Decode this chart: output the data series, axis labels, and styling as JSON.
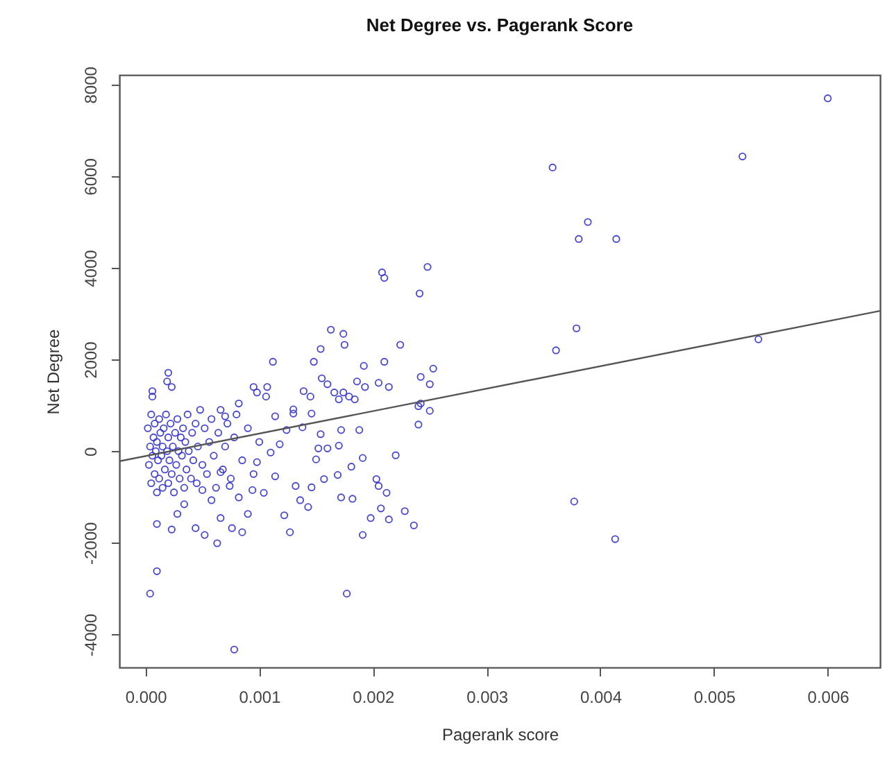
{
  "chart_data": {
    "type": "scatter",
    "title": "Net Degree vs. Pagerank Score",
    "xlabel": "Pagerank score",
    "ylabel": "Net Degree",
    "xlim": [
      -0.00023,
      0.00646
    ],
    "ylim": [
      -4720,
      8210
    ],
    "xticks": [
      {
        "value": 0,
        "label": "0.000"
      },
      {
        "value": 0.001,
        "label": "0.001"
      },
      {
        "value": 0.002,
        "label": "0.002"
      },
      {
        "value": 0.003,
        "label": "0.003"
      },
      {
        "value": 0.004,
        "label": "0.004"
      },
      {
        "value": 0.005,
        "label": "0.005"
      },
      {
        "value": 0.006,
        "label": "0.006"
      }
    ],
    "yticks": [
      -4000,
      -2000,
      0,
      2000,
      4000,
      6000,
      8000
    ],
    "grid": false,
    "series": [
      {
        "marker": "circle",
        "color": "#3333cc",
        "x": [
          0.006,
          0.00525,
          0.00358,
          0.00389,
          0.00381,
          0.00414,
          0.00379,
          0.00361,
          0.00539,
          0.00248,
          0.00208,
          0.0021,
          0.00241,
          0.00163,
          0.00174,
          0.00175,
          0.00154,
          0.00224,
          0.00148,
          0.00112,
          0.00192,
          0.0021,
          0.00253,
          0.00155,
          0.00186,
          0.00205,
          0.00242,
          0.00166,
          0.00174,
          0.00179,
          0.00139,
          0.00107,
          0.00095,
          0.0002,
          0.00019,
          6e-05,
          0.00242,
          0.0024,
          0.0001,
          0.00023,
          0.0001,
          4e-05,
          0.00078,
          0.00177,
          0.00191,
          0.00063,
          0.00052,
          0.00044,
          0.00066,
          0.00076,
          0.00085,
          0.0009,
          0.00127,
          0.00122,
          0.00136,
          0.00143,
          0.00198,
          0.00214,
          0.00236,
          0.00228,
          0.00207,
          0.00212,
          0.00203,
          0.00205,
          0.0022,
          0.00191,
          0.00181,
          0.00172,
          0.00182,
          0.00169,
          0.00157,
          0.00146,
          0.0016,
          0.0017,
          0.00152,
          0.00172,
          0.00188,
          0.0017,
          0.00184,
          0.0016,
          0.00145,
          0.00193,
          0.00214,
          0.0025,
          0.0024,
          0.0025,
          6e-05,
          0.00023,
          0.0013,
          0.0013,
          0.00132,
          0.00114,
          0.00104,
          0.00094,
          0.00082,
          0.00098,
          0.0011,
          0.00118,
          0.00124,
          0.00138,
          0.00114,
          0.00106,
          0.00098,
          0.00082,
          0.0007,
          0.00146,
          0.00154,
          0.0015,
          0.00066,
          0.00074,
          0.00058,
          0.00034,
          0.00028,
          0.0005,
          0.00377,
          0.00413,
          2e-05,
          3e-05,
          4e-05,
          5e-05,
          5e-05,
          6e-05,
          7e-05,
          8e-05,
          8e-05,
          9e-05,
          0.0001,
          0.0001,
          0.00011,
          0.00012,
          0.00012,
          0.00013,
          0.00014,
          0.00015,
          0.00015,
          0.00016,
          0.00017,
          0.00018,
          0.00019,
          0.0002,
          0.0002,
          0.00021,
          0.00022,
          0.00023,
          0.00024,
          0.00025,
          0.00026,
          0.00027,
          0.00028,
          0.00029,
          0.0003,
          0.00031,
          0.00032,
          0.00033,
          0.00034,
          0.00035,
          0.00036,
          0.00037,
          0.00038,
          0.0004,
          0.00041,
          0.00042,
          0.00044,
          0.00045,
          0.00046,
          0.00048,
          0.0005,
          0.00052,
          0.00054,
          0.00056,
          0.00058,
          0.0006,
          0.00062,
          0.00064,
          0.00066,
          0.00068,
          0.0007,
          0.00072,
          0.00075,
          0.00078,
          0.0008,
          0.00085,
          0.0009,
          0.00095,
          0.001
        ],
        "values": [
          7700,
          6430,
          6190,
          5000,
          4630,
          4630,
          2680,
          2200,
          2440,
          4020,
          3900,
          3780,
          3440,
          2650,
          2560,
          2320,
          2230,
          2320,
          1950,
          1950,
          1860,
          1950,
          1800,
          1590,
          1520,
          1490,
          1620,
          1280,
          1280,
          1190,
          1310,
          1400,
          1400,
          1710,
          1520,
          1310,
          1040,
          980,
          -1590,
          -1710,
          -2620,
          -3110,
          -4330,
          -3110,
          -1830,
          -2010,
          -1830,
          -1680,
          -1460,
          -1680,
          -1770,
          -1370,
          -1770,
          -1400,
          -1070,
          -1220,
          -1460,
          -1490,
          -1620,
          -1310,
          -1250,
          -910,
          -610,
          -760,
          -90,
          -150,
          -340,
          -1010,
          -1040,
          -520,
          -610,
          -790,
          60,
          120,
          60,
          460,
          460,
          1130,
          1130,
          1460,
          1190,
          1400,
          1400,
          1460,
          580,
          880,
          1190,
          1400,
          910,
          820,
          -760,
          -550,
          -910,
          -850,
          -1010,
          -240,
          -30,
          150,
          460,
          520,
          760,
          1190,
          1280,
          1040,
          760,
          820,
          370,
          -180,
          -460,
          -760,
          -1070,
          -1160,
          -1370,
          -850,
          -1100,
          -1920,
          500,
          -300,
          100,
          -700,
          800,
          -100,
          300,
          -500,
          600,
          0,
          -900,
          200,
          -200,
          700,
          -600,
          400,
          -100,
          -800,
          100,
          500,
          -400,
          800,
          0,
          -700,
          300,
          -200,
          600,
          -500,
          100,
          -900,
          400,
          -300,
          700,
          0,
          -600,
          300,
          -100,
          500,
          -800,
          200,
          -400,
          800,
          0,
          -600,
          400,
          -200,
          600,
          -700,
          100,
          900,
          -300,
          500,
          -500,
          200,
          700,
          -100,
          -800,
          400,
          900,
          -400,
          100,
          600,
          -600,
          300,
          800,
          -200,
          500,
          -500,
          200
        ]
      },
      {
        "type": "line",
        "color": "#555555",
        "x": [
          -0.00023,
          0.00646
        ],
        "values": [
          -220,
          3060
        ]
      }
    ]
  }
}
